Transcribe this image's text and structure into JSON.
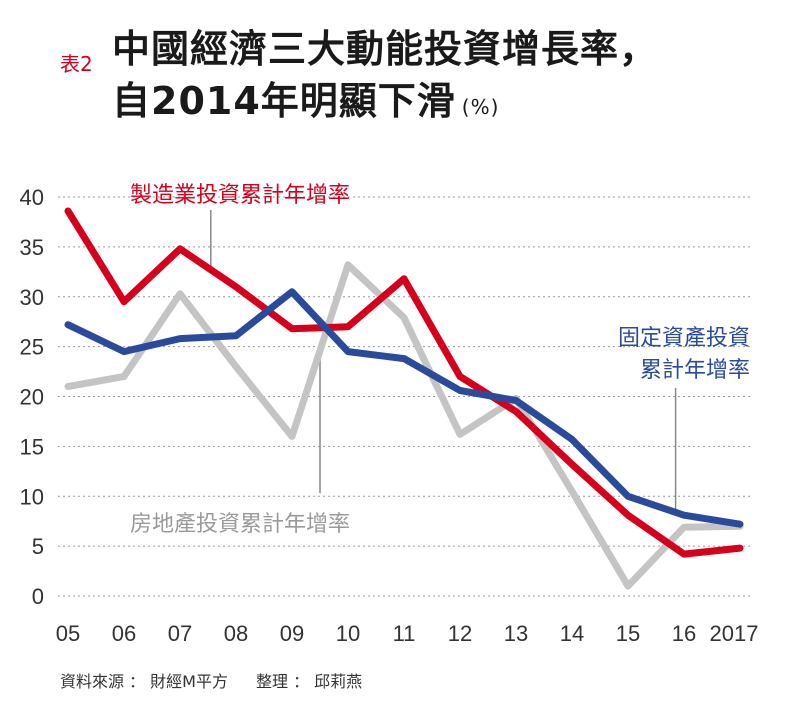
{
  "title": {
    "tag": "表2",
    "line1": "中國經濟三大動能投資增長率，",
    "line2": "自2014年明顯下滑",
    "unit": "(%)"
  },
  "source": {
    "data_source": "資料來源 ： 財經M平方",
    "editor": "整理 ： 邱莉燕"
  },
  "colors": {
    "manufacturing": "#d6001c",
    "fixed_asset": "#2a4a9b",
    "real_estate": "#c4c4c4",
    "grid": "#999999"
  },
  "chart_data": {
    "type": "line",
    "title": "中國經濟三大動能投資增長率，自2014年明顯下滑",
    "xlabel": "",
    "ylabel": "(%)",
    "categories": [
      "05",
      "06",
      "07",
      "08",
      "09",
      "10",
      "11",
      "12",
      "13",
      "14",
      "15",
      "16",
      "2017"
    ],
    "ylim": [
      0,
      40
    ],
    "yticks": [
      0,
      5,
      10,
      15,
      20,
      25,
      30,
      35,
      40
    ],
    "grid": "horizontal dotted",
    "series": [
      {
        "key": "real_estate",
        "name": "房地產投資累計年增率",
        "values": [
          21.0,
          22.0,
          30.3,
          23.0,
          16.0,
          33.2,
          27.9,
          16.2,
          19.8,
          10.5,
          1.0,
          6.9,
          7.0
        ]
      },
      {
        "key": "manufacturing",
        "name": "製造業投資累計年增率",
        "values": [
          38.6,
          29.5,
          34.8,
          31.0,
          26.8,
          27.0,
          31.8,
          22.0,
          18.5,
          13.2,
          8.1,
          4.2,
          4.8
        ]
      },
      {
        "key": "fixed_asset",
        "name_line1": "固定資產投資",
        "name_line2": "累計年增率",
        "values": [
          27.2,
          24.5,
          25.8,
          26.1,
          30.5,
          24.5,
          23.8,
          20.6,
          19.6,
          15.7,
          10.0,
          8.1,
          7.2
        ]
      }
    ]
  }
}
